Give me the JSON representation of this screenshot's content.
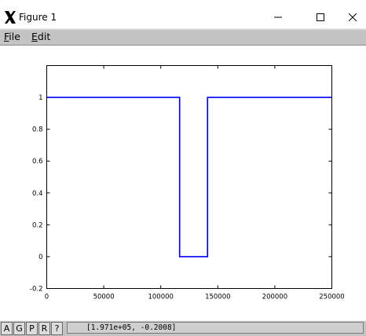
{
  "window": {
    "title": "Figure 1",
    "app_icon": "x-logo-icon",
    "controls": [
      "minimize-icon",
      "maximize-icon",
      "close-icon"
    ]
  },
  "menu": {
    "file_rest": "ile",
    "file_accel": "F",
    "edit_rest": "dit",
    "edit_accel": "E"
  },
  "statusbar": {
    "buttons": [
      "A",
      "G",
      "P",
      "R",
      "?"
    ],
    "coordinates": "[1.971e+05, -0.2008]"
  },
  "colors": {
    "line": "#0000ff",
    "chrome": "#c4c4c4"
  },
  "chart_data": {
    "type": "line",
    "title": "",
    "xlabel": "",
    "ylabel": "",
    "xlim": [
      0,
      250000
    ],
    "ylim": [
      -0.2,
      1.2
    ],
    "grid": false,
    "xticks": [
      0,
      50000,
      100000,
      150000,
      200000,
      250000
    ],
    "xtick_labels": [
      "0",
      "50000",
      "100000",
      "150000",
      "200000",
      "250000"
    ],
    "yticks": [
      -0.2,
      0,
      0.2,
      0.4,
      0.6,
      0.8,
      1
    ],
    "ytick_labels": [
      "-0.2",
      "0",
      "0.2",
      "0.4",
      "0.6",
      "0.8",
      "1"
    ],
    "series": [
      {
        "x": [
          0,
          116500,
          116500,
          141000,
          141000,
          250000
        ],
        "y": [
          1,
          1,
          0,
          0,
          1,
          1
        ]
      }
    ]
  }
}
